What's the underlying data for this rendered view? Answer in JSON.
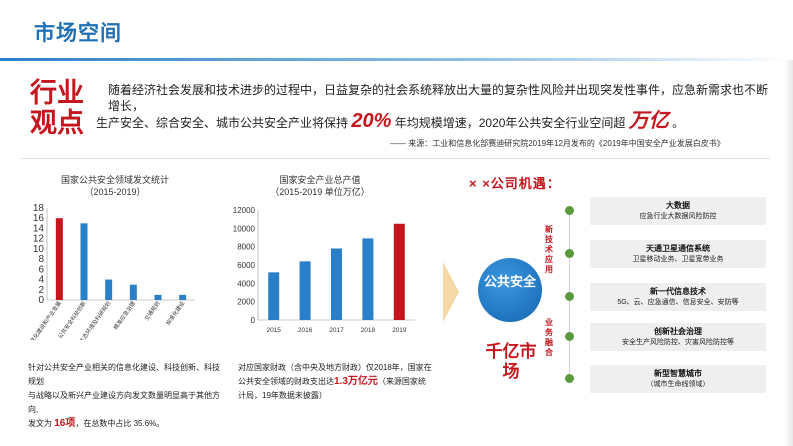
{
  "header": {
    "title": "市场空间"
  },
  "industry": {
    "label": "行业观点",
    "line1": "随着经济社会发展和技术进步的过程中，日益复杂的社会系统释放出大量的复杂性风险并出现突发性事件，应急新需求也不断增长，",
    "line2_a": "生产安全、综合安全、城市公共安全产业将保持",
    "line2_pct": "20%",
    "line2_b": "年均规模增速，2020年公共安全行业空间超",
    "line2_big": "万亿",
    "line2_end": "。",
    "source": "—— 来源：工业和信息化部赛迪研究院2019年12月发布的《2019年中国安全产业发展白皮书》"
  },
  "chart_left": {
    "title_line1": "国家公共安全领域发文统计",
    "title_line2": "（2015-2019）"
  },
  "chart_right": {
    "title_line1": "国家安全产业总产值",
    "title_line2": "（2015-2019 单位万亿）"
  },
  "chart_data": [
    {
      "type": "bar",
      "categories": [
        "信息化建设和产业发展",
        "公共安全科技创新",
        "生态环境及科研规划",
        "精准应急治理",
        "交通规则",
        "标准化建设"
      ],
      "values": [
        16,
        15,
        4,
        3,
        1,
        1
      ],
      "ylim": [
        0,
        18
      ],
      "yticks": [
        0,
        2,
        4,
        6,
        8,
        10,
        12,
        14,
        16,
        18
      ],
      "colors": [
        "#c4161c",
        "#2a7fc9",
        "#2a7fc9",
        "#2a7fc9",
        "#2a7fc9",
        "#2a7fc9"
      ],
      "grid": false
    },
    {
      "type": "bar",
      "categories": [
        "2015",
        "2016",
        "2017",
        "2018",
        "2019"
      ],
      "values": [
        5200,
        6400,
        7800,
        8900,
        10500
      ],
      "ylim": [
        0,
        12000
      ],
      "yticks": [
        0,
        2000,
        4000,
        6000,
        8000,
        10000,
        12000
      ],
      "colors": [
        "#2a7fc9",
        "#2a7fc9",
        "#2a7fc9",
        "#2a7fc9",
        "#c4161c"
      ],
      "grid": false
    }
  ],
  "left_note": {
    "line1": "针对公共安全产业相关的信息化建设、科技创新、科技规划",
    "line2": "与战略以及新兴产业建设方向发文数量明显高于其他方向,",
    "line3_a": "发文为",
    "line3_num": "16项",
    "line3_b": "，在总数中占比 35.6%。"
  },
  "right_note": {
    "line1": "对应国家财政（含中央及地方财政）仅2018年，国家在",
    "line2_a": "公共安全领域的财政支出达",
    "line2_num": "1.3万亿元",
    "line2_b": "（来源国家统",
    "line3": "计局，19年数据未披露）"
  },
  "opportunity": {
    "title": "× ×公司机遇：",
    "hub": "公共安全",
    "market": "千亿市场",
    "vlabel_top": "新技术应用",
    "vlabel_bottom": "业务融合",
    "items": [
      {
        "title": "大数据",
        "sub": "应急行业大数据风险防控"
      },
      {
        "title": "天通卫星通信系统",
        "sub": "卫星移动业务、卫星宽带业务"
      },
      {
        "title": "新一代信息技术",
        "sub": "5G、云、应急通信、信息安全、安防等"
      },
      {
        "title": "创新社会治理",
        "sub": "安全生产风险防控、灾害风险防控等"
      },
      {
        "title": "新型智慧城市",
        "sub": "（城市生命线领域）"
      }
    ]
  }
}
